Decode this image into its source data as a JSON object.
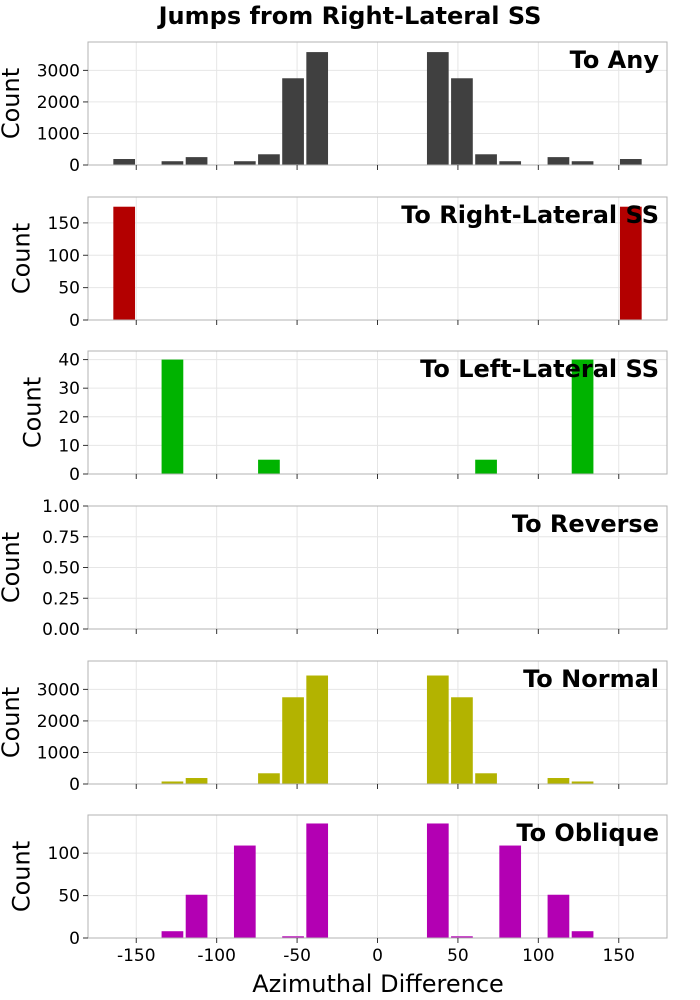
{
  "figure": {
    "title": "Jumps from Right-Lateral SS",
    "xlabel": "Azimuthal Difference"
  },
  "chart_data": {
    "type": "bar",
    "shared_x": {
      "xlim": [
        -180,
        180
      ],
      "xticks": [
        -150,
        -100,
        -50,
        0,
        50,
        100,
        150
      ],
      "xtick_labels": [
        "-150",
        "-100",
        "-50",
        "0",
        "50",
        "100",
        "150"
      ],
      "bin_centers": [
        -157.5,
        -142.5,
        -127.5,
        -112.5,
        -97.5,
        -82.5,
        -67.5,
        -52.5,
        -37.5,
        -22.5,
        -7.5,
        7.5,
        22.5,
        37.5,
        52.5,
        67.5,
        82.5,
        97.5,
        112.5,
        127.5,
        142.5,
        157.5
      ],
      "bin_width": 15
    },
    "grid": true,
    "panels": [
      {
        "label": "To Any",
        "color": "#404040",
        "ylabel": "Count",
        "ylim": [
          0,
          3900
        ],
        "yticks": [
          0,
          1000,
          2000,
          3000
        ],
        "values": [
          190,
          0,
          120,
          250,
          0,
          120,
          340,
          2750,
          3580,
          0,
          0,
          0,
          0,
          3580,
          2750,
          340,
          120,
          0,
          250,
          120,
          0,
          190
        ]
      },
      {
        "label": "To Right-Lateral SS",
        "color": "#b30000",
        "ylabel": "Count",
        "ylim": [
          0,
          190
        ],
        "yticks": [
          0,
          50,
          100,
          150
        ],
        "values": [
          175,
          0,
          0,
          0,
          0,
          0,
          0,
          0,
          0,
          0,
          0,
          0,
          0,
          0,
          0,
          0,
          0,
          0,
          0,
          0,
          0,
          175
        ]
      },
      {
        "label": "To Left-Lateral SS",
        "color": "#00b300",
        "ylabel": "Count",
        "ylim": [
          0,
          43
        ],
        "yticks": [
          0,
          10,
          20,
          30,
          40
        ],
        "values": [
          0,
          0,
          40,
          0,
          0,
          0,
          5,
          0,
          0,
          0,
          0,
          0,
          0,
          0,
          0,
          5,
          0,
          0,
          0,
          40,
          0,
          0
        ]
      },
      {
        "label": "To Reverse",
        "color": "#0000b3",
        "ylabel": "Count",
        "ylim": [
          0,
          1
        ],
        "yticks": [
          0,
          0.25,
          0.5,
          0.75,
          1.0
        ],
        "ytick_labels": [
          "0.00",
          "0.25",
          "0.50",
          "0.75",
          "1.00"
        ],
        "values": [
          0,
          0,
          0,
          0,
          0,
          0,
          0,
          0,
          0,
          0,
          0,
          0,
          0,
          0,
          0,
          0,
          0,
          0,
          0,
          0,
          0,
          0
        ]
      },
      {
        "label": "To Normal",
        "color": "#b3b300",
        "ylabel": "Count",
        "ylim": [
          0,
          3900
        ],
        "yticks": [
          0,
          1000,
          2000,
          3000
        ],
        "values": [
          0,
          0,
          80,
          190,
          0,
          0,
          340,
          2750,
          3440,
          0,
          0,
          0,
          0,
          3440,
          2750,
          340,
          0,
          0,
          190,
          80,
          0,
          0
        ]
      },
      {
        "label": "To Oblique",
        "color": "#b300b3",
        "ylabel": "Count",
        "ylim": [
          0,
          145
        ],
        "yticks": [
          0,
          50,
          100
        ],
        "values": [
          0,
          0,
          8,
          51,
          0,
          109,
          0,
          2,
          135,
          0,
          0,
          0,
          0,
          135,
          2,
          0,
          109,
          0,
          51,
          8,
          0,
          0
        ]
      }
    ]
  }
}
